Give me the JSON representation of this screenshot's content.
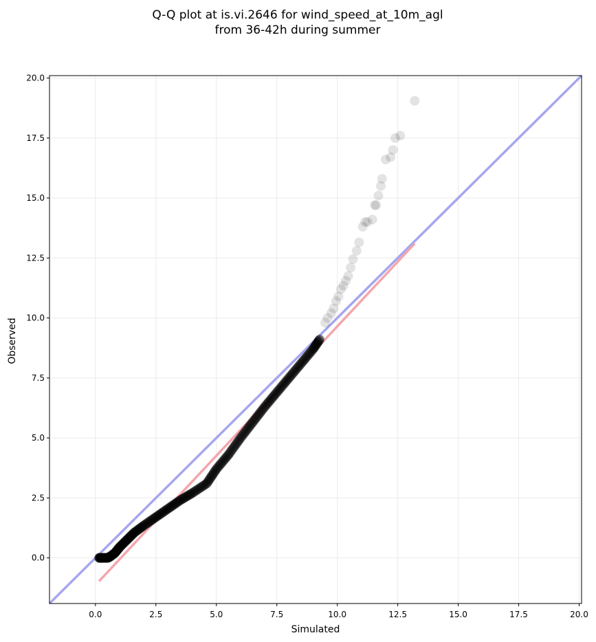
{
  "chart_data": {
    "type": "scatter",
    "title": [
      "Q-Q plot at is.vi.2646 for wind_speed_at_10m_agl",
      "from 36-42h during summer"
    ],
    "xlabel": "Simulated",
    "ylabel": "Observed",
    "xlim": [
      -1.9,
      20.1
    ],
    "ylim": [
      -1.9,
      20.1
    ],
    "xticks": [
      0,
      2.5,
      5,
      7.5,
      10,
      12.5,
      15,
      17.5,
      20
    ],
    "xtick_labels": [
      "0.0",
      "2.5",
      "5.0",
      "7.5",
      "10.0",
      "12.5",
      "15.0",
      "17.5",
      "20.0"
    ],
    "yticks": [
      0,
      2.5,
      5,
      7.5,
      10,
      12.5,
      15,
      17.5,
      20
    ],
    "ytick_labels": [
      "0.0",
      "2.5",
      "5.0",
      "7.5",
      "10.0",
      "12.5",
      "15.0",
      "17.5",
      "20.0"
    ],
    "grid": true,
    "colors": {
      "points": "#000000",
      "identity_line": "#a6a6ef",
      "fit_line": "#f4a6ab",
      "grid": "#ebebeb"
    },
    "reference_lines": [
      {
        "name": "1:1",
        "color": "#a6a6ef",
        "x": [
          -1.9,
          20.1
        ],
        "y": [
          -1.9,
          20.1
        ]
      },
      {
        "name": "fit",
        "color": "#f4a6ab",
        "x": [
          0.15,
          13.2
        ],
        "y": [
          -0.97,
          13.1
        ]
      }
    ],
    "quantile_curve": {
      "x": [
        0.15,
        0.3,
        0.5,
        0.6,
        0.8,
        1.0,
        1.3,
        1.6,
        2.0,
        2.5,
        3.0,
        3.5,
        4.0,
        4.6,
        5.0,
        5.5,
        6.0,
        6.5,
        7.0,
        7.5,
        8.0,
        8.5,
        9.0,
        9.3
      ],
      "y": [
        0.0,
        0.0,
        0.0,
        0.05,
        0.2,
        0.45,
        0.75,
        1.05,
        1.35,
        1.7,
        2.05,
        2.4,
        2.7,
        3.1,
        3.7,
        4.3,
        5.0,
        5.65,
        6.3,
        6.9,
        7.5,
        8.1,
        8.7,
        9.15
      ]
    },
    "tail_points": {
      "x": [
        9.5,
        9.6,
        9.75,
        9.85,
        9.95,
        10.05,
        10.15,
        10.25,
        10.35,
        10.45,
        10.55,
        10.65,
        10.8,
        10.9,
        11.05,
        11.15,
        11.25,
        11.45,
        11.55,
        11.6,
        11.7,
        11.8,
        11.85,
        12.0,
        12.2,
        12.3,
        12.4,
        12.6,
        13.2
      ],
      "y": [
        9.8,
        10.0,
        10.2,
        10.4,
        10.7,
        10.9,
        11.2,
        11.35,
        11.55,
        11.75,
        12.1,
        12.45,
        12.8,
        13.15,
        13.8,
        14.0,
        14.0,
        14.1,
        14.7,
        14.7,
        15.1,
        15.5,
        15.8,
        16.6,
        16.7,
        17.0,
        17.5,
        17.6,
        19.05
      ]
    }
  }
}
